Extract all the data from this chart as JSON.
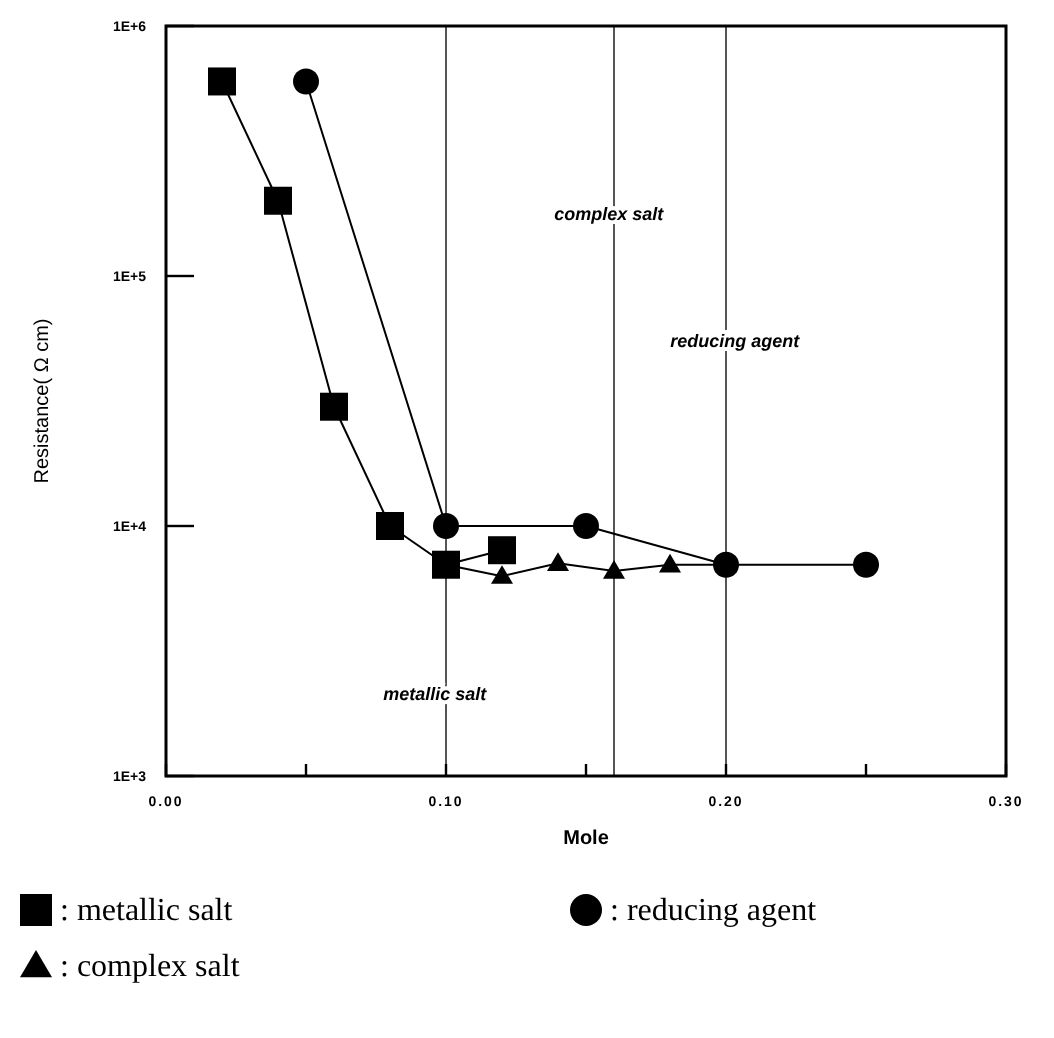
{
  "chart_data": {
    "type": "line",
    "xlabel": "Mole",
    "ylabel": "Resistance( Ω cm)",
    "log": "y",
    "xlim": [
      0,
      0.3
    ],
    "ylim": [
      1000,
      1000000
    ],
    "xticks": [
      {
        "value": 0,
        "label": "0.00"
      },
      {
        "value": 0.05,
        "label": null
      },
      {
        "value": 0.1,
        "label": "0.10"
      },
      {
        "value": 0.15,
        "label": null
      },
      {
        "value": 0.2,
        "label": "0.20"
      },
      {
        "value": 0.25,
        "label": null
      },
      {
        "value": 0.3,
        "label": "0.30"
      }
    ],
    "yticks": [
      {
        "value": 1000,
        "label": "1E+3"
      },
      {
        "value": 10000,
        "label": "1E+4"
      },
      {
        "value": 100000,
        "label": "1E+5"
      },
      {
        "value": 1000000,
        "label": "1E+6"
      }
    ],
    "grid": false,
    "legend": "bottom",
    "line_style": "solid",
    "series": [
      {
        "name": ": metallic salt",
        "color": "#000000",
        "marker": "square",
        "x": [
          0.02,
          0.04,
          0.06,
          0.08,
          0.1,
          0.12
        ],
        "values": [
          600000,
          200000,
          30000,
          10000,
          7000,
          8000
        ]
      },
      {
        "name": ": complex salt",
        "color": "#000000",
        "marker": "triangle",
        "x": [
          0.1,
          0.12,
          0.14,
          0.16,
          0.18,
          0.2
        ],
        "values": [
          7000,
          6300,
          7100,
          6600,
          7000,
          7000
        ]
      },
      {
        "name": ": reducing agent",
        "color": "#000000",
        "marker": "circle",
        "x": [
          0.05,
          0.1,
          0.15,
          0.2,
          0.25
        ],
        "values": [
          600000,
          10000,
          10000,
          7000,
          7000
        ]
      }
    ],
    "ref_lines": [
      {
        "axis": "x",
        "value": 0.1,
        "color": "#555555"
      },
      {
        "axis": "x",
        "value": 0.16,
        "color": "#555555"
      },
      {
        "axis": "x",
        "value": 0.2,
        "color": "#555555"
      }
    ],
    "annotations": [
      "complex salt",
      "reducing agent",
      "metallic salt"
    ]
  }
}
